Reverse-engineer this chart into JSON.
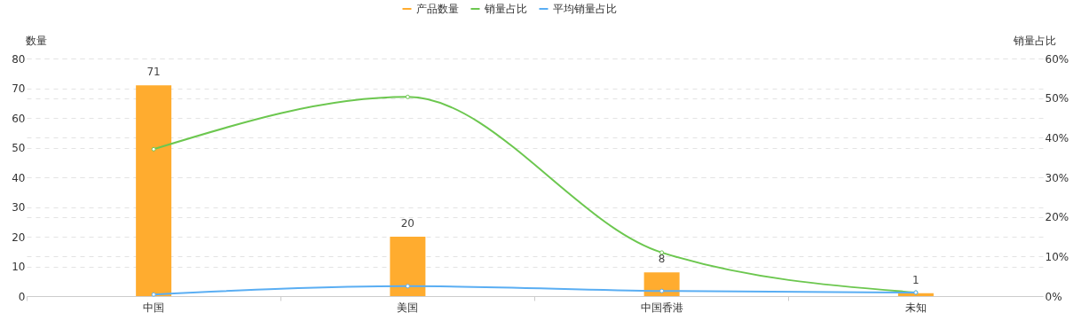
{
  "chart_data": {
    "type": "bar",
    "categories": [
      "中国",
      "美国",
      "中国香港",
      "未知"
    ],
    "series": [
      {
        "name": "产品数量",
        "color": "#ffac2f",
        "values": [
          71,
          20,
          8,
          1
        ],
        "value_labels": [
          "71",
          "20",
          "8",
          "1"
        ]
      },
      {
        "name": "销量占比",
        "type": "line",
        "axis": "y2",
        "color": "#6cc74f",
        "values": [
          37.1,
          50.3,
          11.0,
          0.9
        ]
      },
      {
        "name": "平均销量占比",
        "type": "line",
        "axis": "y2",
        "color": "#5aaef3",
        "values": [
          0.4,
          2.5,
          1.3,
          0.9
        ]
      }
    ],
    "ylabel": "数量",
    "y2label": "销量占比",
    "ylim": [
      0,
      80
    ],
    "yticks": [
      0,
      10,
      20,
      30,
      40,
      50,
      60,
      70,
      80
    ],
    "y2lim": [
      0,
      60
    ],
    "y2ticks": [
      {
        "value": 0,
        "label": "0%"
      },
      {
        "value": 10,
        "label": "10%"
      },
      {
        "value": 20,
        "label": "20%"
      },
      {
        "value": 30,
        "label": "30%"
      },
      {
        "value": 40,
        "label": "40%"
      },
      {
        "value": 50,
        "label": "50%"
      },
      {
        "value": 60,
        "label": "60%"
      }
    ],
    "grid": true,
    "legend": "top",
    "marker": "circle",
    "line_style": "solid"
  }
}
